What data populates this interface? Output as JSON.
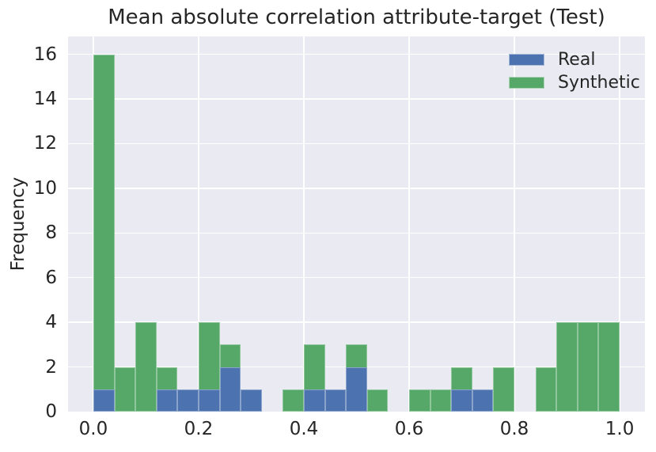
{
  "figure": {
    "background": "#ffffff",
    "plot_background": "#eaeaf2",
    "grid_color": "#ffffff",
    "text_color": "#262626"
  },
  "chart_data": {
    "type": "bar",
    "variant": "overlaid-histogram",
    "title": "Mean absolute correlation attribute-target (Test)",
    "xlabel": "",
    "ylabel": "Frequency",
    "grid": true,
    "legend_position": "upper right",
    "xlim": [
      -0.048,
      1.048
    ],
    "ylim": [
      0,
      16.8
    ],
    "bin_width": 0.04,
    "bin_starts": [
      0.0,
      0.04,
      0.08,
      0.12,
      0.16,
      0.2,
      0.24,
      0.28,
      0.32,
      0.36,
      0.4,
      0.44,
      0.48,
      0.52,
      0.56,
      0.6,
      0.64,
      0.68,
      0.72,
      0.76,
      0.8,
      0.84,
      0.88,
      0.92,
      0.96
    ],
    "series": [
      {
        "name": "Real",
        "color": "#4c72b0",
        "values": [
          1,
          0,
          0,
          1,
          1,
          1,
          2,
          1,
          0,
          0,
          1,
          1,
          2,
          0,
          0,
          0,
          0,
          1,
          1,
          0,
          0,
          0,
          0,
          0,
          0
        ]
      },
      {
        "name": "Synthetic",
        "color": "#55a868",
        "values": [
          16,
          2,
          4,
          2,
          0,
          4,
          3,
          0,
          0,
          1,
          3,
          0,
          3,
          1,
          0,
          1,
          1,
          2,
          0,
          2,
          0,
          2,
          4,
          4,
          4
        ]
      }
    ],
    "draw_order": [
      "Synthetic",
      "Real"
    ],
    "xticks": {
      "values": [
        0.0,
        0.2,
        0.4,
        0.6,
        0.8,
        1.0
      ],
      "labels": [
        "0.0",
        "0.2",
        "0.4",
        "0.6",
        "0.8",
        "1.0"
      ]
    },
    "yticks": {
      "values": [
        0,
        2,
        4,
        6,
        8,
        10,
        12,
        14,
        16
      ],
      "labels": [
        "0",
        "2",
        "4",
        "6",
        "8",
        "10",
        "12",
        "14",
        "16"
      ]
    }
  }
}
